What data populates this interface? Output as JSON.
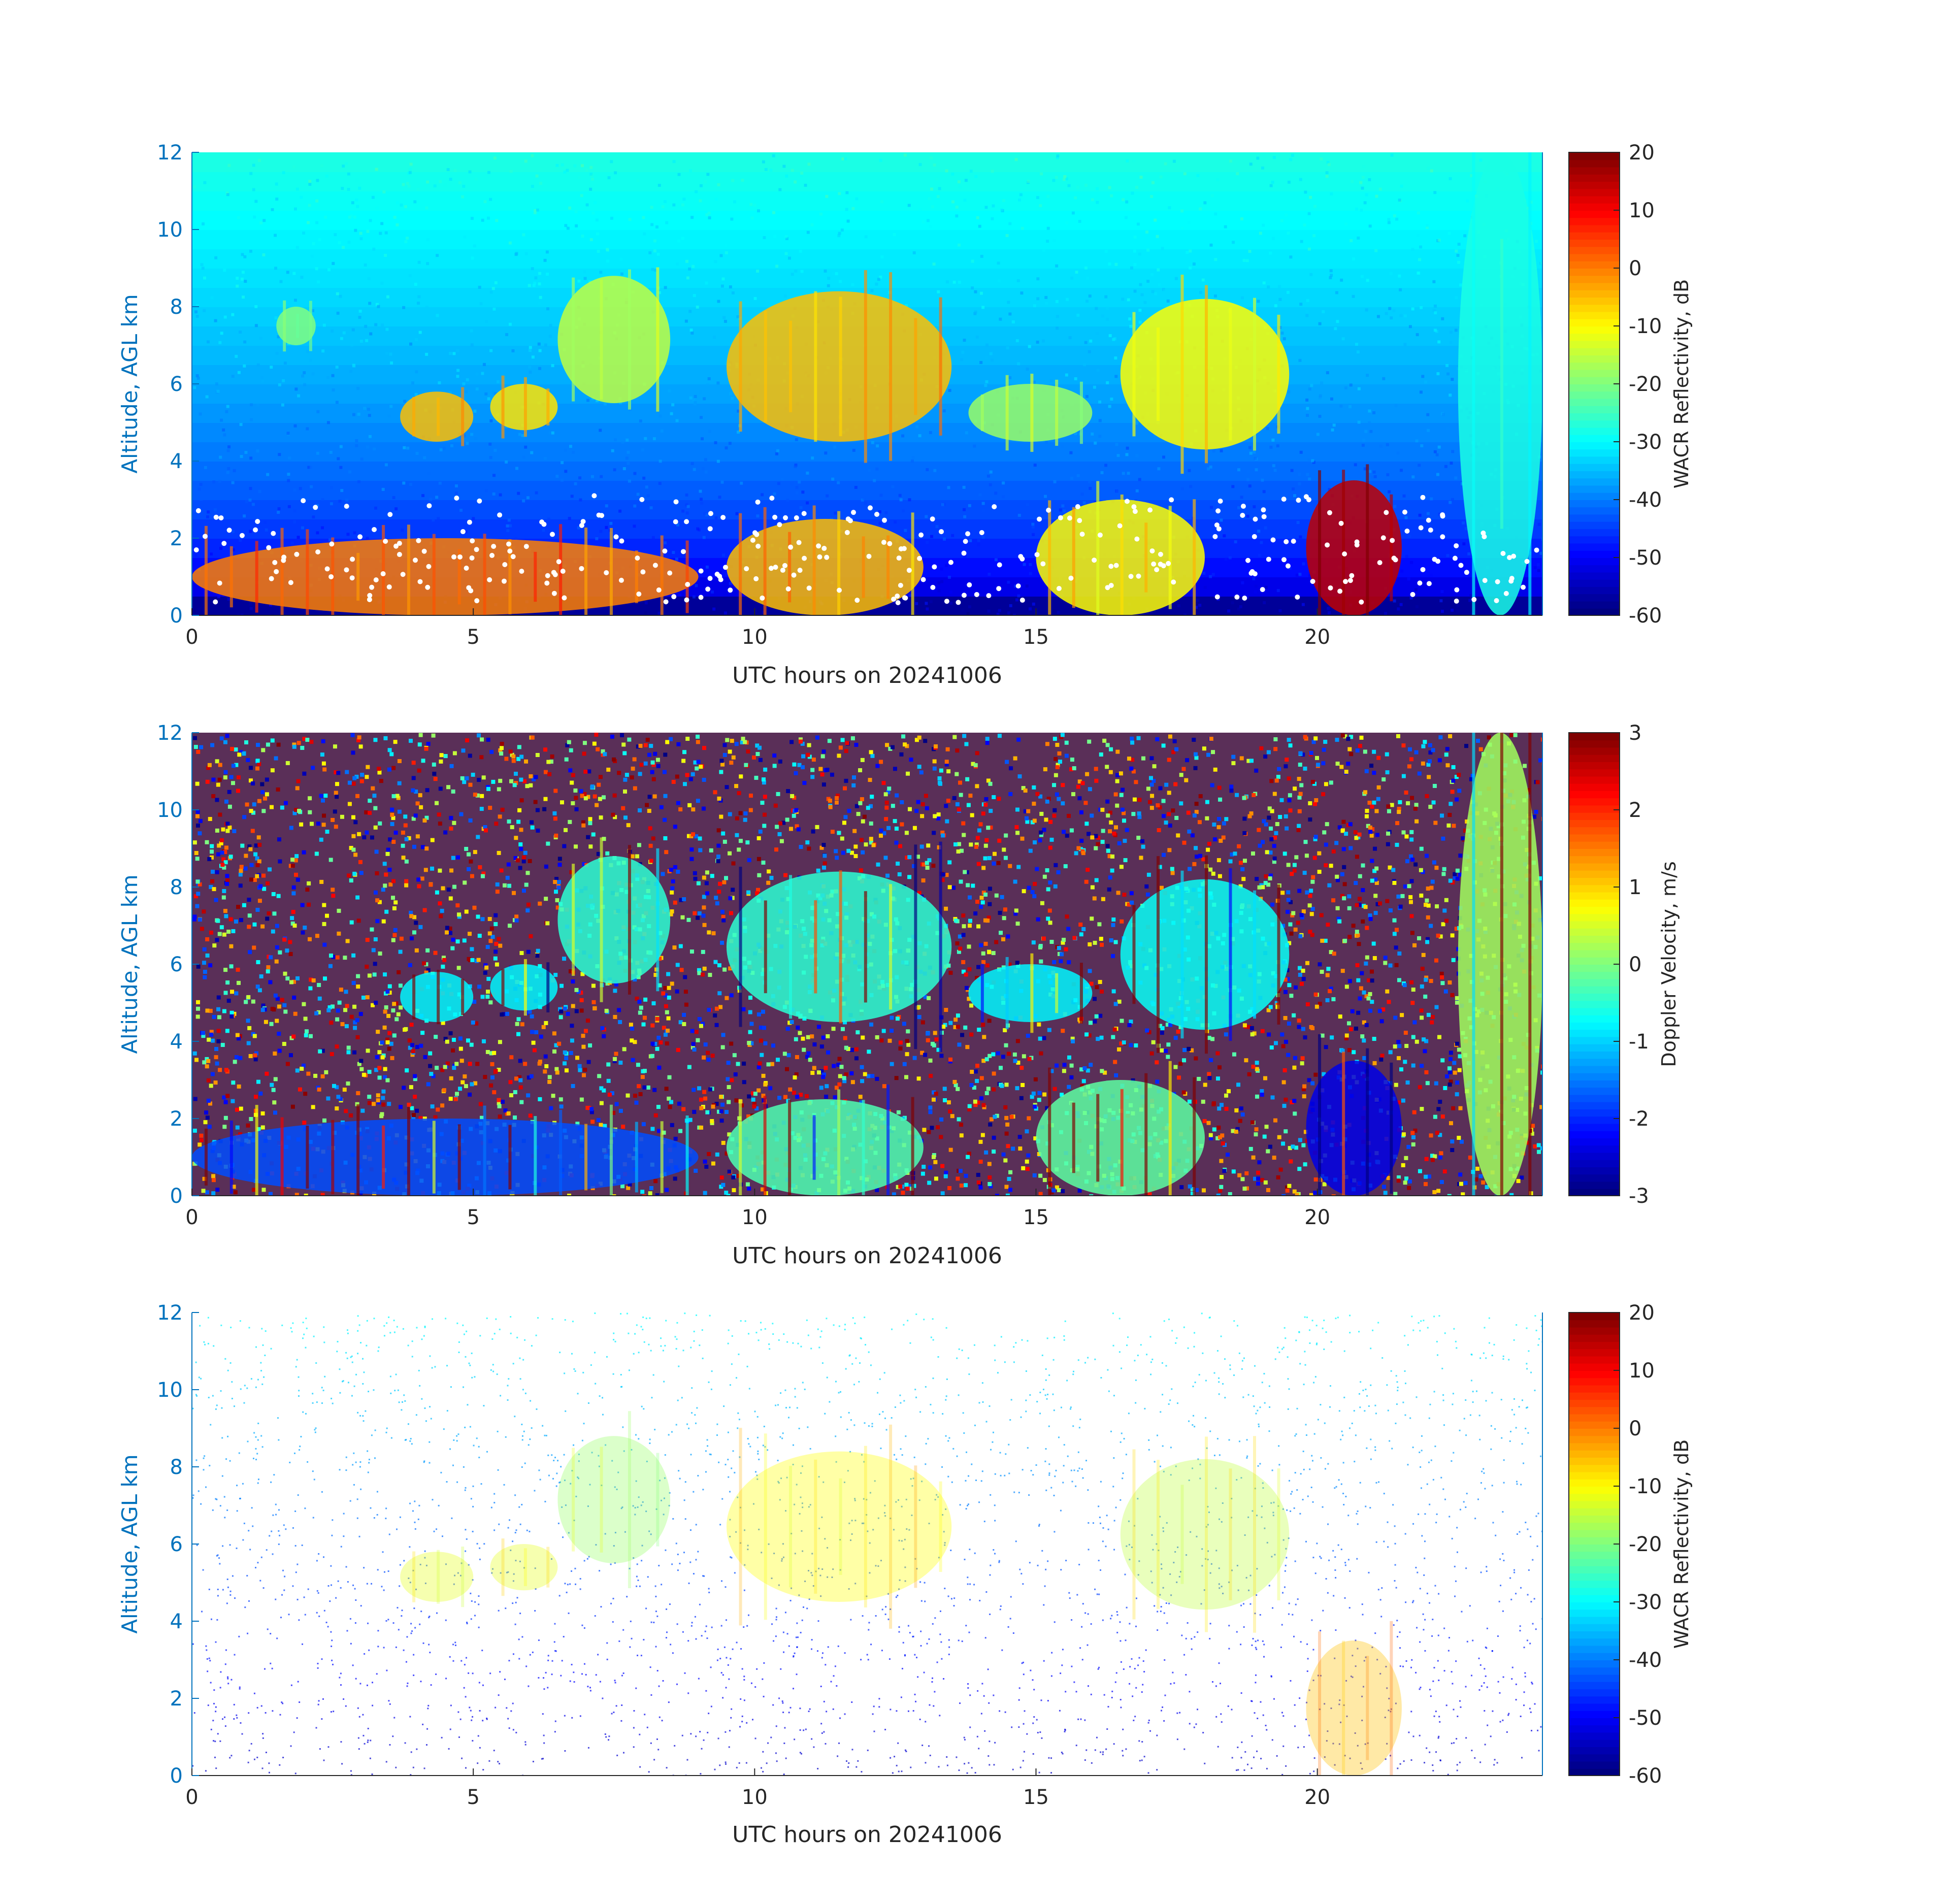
{
  "figure": {
    "background": "#ffffff",
    "axis_color": "#0072BD",
    "text_color": "#262626"
  },
  "chart_data": [
    {
      "type": "heatmap",
      "title": "",
      "xlabel": "UTC hours on 20241006",
      "ylabel": "Altitude, AGL km",
      "xlim": [
        0,
        24
      ],
      "ylim": [
        0,
        12
      ],
      "xticks": [
        0,
        5,
        10,
        15,
        20
      ],
      "yticks": [
        0,
        2,
        4,
        6,
        8,
        10,
        12
      ],
      "colorbar": {
        "label": "WACR Reflectivity, dB",
        "range": [
          -60,
          20
        ],
        "ticks": [
          20,
          10,
          0,
          -10,
          -20,
          -30,
          -40,
          -50,
          -60
        ],
        "colormap": "jet"
      },
      "background_style": "noise",
      "features": [
        {
          "x": [
            3.7,
            5.0
          ],
          "y": [
            4.5,
            5.8
          ],
          "value": -5
        },
        {
          "x": [
            5.3,
            6.5
          ],
          "y": [
            4.8,
            6.0
          ],
          "value": -8
        },
        {
          "x": [
            6.5,
            8.5
          ],
          "y": [
            5.5,
            8.8
          ],
          "value": -15
        },
        {
          "x": [
            9.5,
            13.5
          ],
          "y": [
            4.5,
            8.4
          ],
          "value": -5
        },
        {
          "x": [
            13.8,
            16.0
          ],
          "y": [
            4.5,
            6.0
          ],
          "value": -18
        },
        {
          "x": [
            16.5,
            19.5
          ],
          "y": [
            4.3,
            8.2
          ],
          "value": -10
        },
        {
          "x": [
            1.5,
            2.2
          ],
          "y": [
            7.0,
            8.0
          ],
          "value": -20
        },
        {
          "x": [
            0,
            9
          ],
          "y": [
            0,
            2
          ],
          "value": 0
        },
        {
          "x": [
            9.5,
            13
          ],
          "y": [
            0,
            2.5
          ],
          "value": -5
        },
        {
          "x": [
            15.0,
            18.0
          ],
          "y": [
            0,
            3.0
          ],
          "value": -10
        },
        {
          "x": [
            19.8,
            21.5
          ],
          "y": [
            0,
            3.5
          ],
          "value": 15
        },
        {
          "x": [
            22.5,
            24.0
          ],
          "y": [
            0,
            12
          ],
          "value": -28
        }
      ],
      "dot_layer_color": "#ffffff"
    },
    {
      "type": "heatmap",
      "title": "",
      "xlabel": "UTC hours on 20241006",
      "ylabel": "Altitude, AGL km",
      "xlim": [
        0,
        24
      ],
      "ylim": [
        0,
        12
      ],
      "xticks": [
        0,
        5,
        10,
        15,
        20
      ],
      "yticks": [
        0,
        2,
        4,
        6,
        8,
        10,
        12
      ],
      "colorbar": {
        "label": "Doppler Velocity, m/s",
        "range": [
          -3,
          3
        ],
        "ticks": [
          3,
          2,
          1,
          0,
          -1,
          -2,
          -3
        ],
        "colormap": "jet"
      },
      "background_style": "speckle",
      "features": [
        {
          "x": [
            3.7,
            5.0
          ],
          "y": [
            4.5,
            5.8
          ],
          "value": -0.8
        },
        {
          "x": [
            5.3,
            6.5
          ],
          "y": [
            4.8,
            6.0
          ],
          "value": -0.8
        },
        {
          "x": [
            6.5,
            8.5
          ],
          "y": [
            5.5,
            8.8
          ],
          "value": -0.5
        },
        {
          "x": [
            9.5,
            13.5
          ],
          "y": [
            4.5,
            8.4
          ],
          "value": -0.5
        },
        {
          "x": [
            13.8,
            16.0
          ],
          "y": [
            4.5,
            6.0
          ],
          "value": -0.8
        },
        {
          "x": [
            16.5,
            19.5
          ],
          "y": [
            4.3,
            8.2
          ],
          "value": -0.7
        },
        {
          "x": [
            0,
            9
          ],
          "y": [
            0,
            2
          ],
          "value": -1.8
        },
        {
          "x": [
            9.5,
            13
          ],
          "y": [
            0,
            2.5
          ],
          "value": -0.3
        },
        {
          "x": [
            15.0,
            18.0
          ],
          "y": [
            0,
            3.0
          ],
          "value": -0.2
        },
        {
          "x": [
            19.8,
            21.5
          ],
          "y": [
            0,
            3.5
          ],
          "value": -2.4
        },
        {
          "x": [
            22.5,
            24.0
          ],
          "y": [
            0,
            12
          ],
          "value": 0.2
        }
      ]
    },
    {
      "type": "heatmap",
      "title": "",
      "xlabel": "UTC hours on 20241006",
      "ylabel": "Altitude, AGL km",
      "xlim": [
        0,
        24
      ],
      "ylim": [
        0,
        12
      ],
      "xticks": [
        0,
        5,
        10,
        15,
        20
      ],
      "yticks": [
        0,
        2,
        4,
        6,
        8,
        10,
        12
      ],
      "colorbar": {
        "label": "WACR Reflectivity, dB",
        "range": [
          -60,
          20
        ],
        "ticks": [
          20,
          10,
          0,
          -10,
          -20,
          -30,
          -40,
          -50,
          -60
        ],
        "colormap": "jet"
      },
      "background_style": "sparse",
      "features": [
        {
          "x": [
            3.7,
            5.0
          ],
          "y": [
            4.5,
            5.8
          ],
          "value": -12
        },
        {
          "x": [
            5.3,
            6.5
          ],
          "y": [
            4.8,
            6.0
          ],
          "value": -12
        },
        {
          "x": [
            6.5,
            8.5
          ],
          "y": [
            5.5,
            8.8
          ],
          "value": -18
        },
        {
          "x": [
            9.5,
            13.5
          ],
          "y": [
            4.5,
            8.4
          ],
          "value": -10
        },
        {
          "x": [
            16.5,
            19.5
          ],
          "y": [
            4.3,
            8.2
          ],
          "value": -15
        },
        {
          "x": [
            19.8,
            21.5
          ],
          "y": [
            0,
            3.5
          ],
          "value": -5
        }
      ]
    }
  ]
}
